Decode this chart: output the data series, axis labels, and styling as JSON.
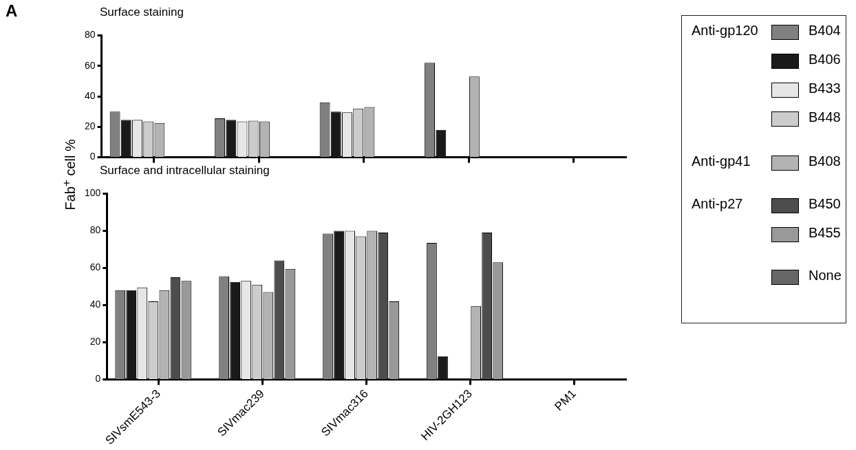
{
  "chart_data": [
    {
      "type": "bar",
      "title": "Surface staining",
      "ylabel": "Fab$^{+}$ cell %",
      "annotations": [
        "A",
        "Anti-gp120",
        "Anti-gp41",
        "Anti-p27"
      ],
      "categories": [
        null,
        null,
        null,
        null,
        null
      ],
      "series": [
        {
          "name": "B404",
          "color": "#808080",
          "values": [
            30,
            25.5,
            36,
            62,
            null
          ]
        },
        {
          "name": "B406",
          "color": "#1a1a1a",
          "values": [
            24.5,
            24.5,
            30,
            18,
            null
          ]
        },
        {
          "name": "B433",
          "color": "#e6e6e6",
          "values": [
            24.5,
            23.5,
            29.5,
            null,
            null
          ]
        },
        {
          "name": "B448",
          "color": "#cccccc",
          "values": [
            23.5,
            24,
            32,
            null,
            null
          ]
        },
        {
          "name": "B408",
          "color": "#b3b3b3",
          "values": [
            22.5,
            23.5,
            33,
            53,
            null
          ]
        },
        {
          "name": "B450",
          "color": "#4d4d4d",
          "values": [
            null,
            null,
            null,
            null,
            null
          ]
        },
        {
          "name": "B455",
          "color": "#999999",
          "values": [
            null,
            null,
            null,
            null,
            null
          ]
        },
        {
          "name": "None",
          "color": "#666666",
          "values": [
            null,
            null,
            null,
            null,
            null
          ]
        }
      ],
      "ylim": [
        0,
        80
      ],
      "yticks": [
        0,
        20,
        40,
        60,
        80
      ],
      "grid": false,
      "tick_labels": "y",
      "legend": "right"
    },
    {
      "type": "bar",
      "title": "Surface and intracellular staining",
      "categories": [
        "SIVsmE543-3",
        "SIVmac239",
        "SIVmac316",
        "HIV-2GH123",
        "PM1"
      ],
      "series": [
        {
          "color": "#808080",
          "values": [
            48,
            55.5,
            78.5,
            73.5,
            0
          ]
        },
        {
          "color": "#1a1a1a",
          "values": [
            48,
            52.5,
            80,
            12.5,
            0
          ]
        },
        {
          "color": "#e6e6e6",
          "values": [
            49.5,
            53,
            80,
            0,
            0
          ]
        },
        {
          "color": "#cccccc",
          "values": [
            42,
            51,
            77,
            0,
            0
          ]
        },
        {
          "color": "#b3b3b3",
          "values": [
            48,
            47,
            80,
            39.5,
            0
          ]
        },
        {
          "color": "#4d4d4d",
          "values": [
            55,
            64,
            79,
            79,
            0
          ]
        },
        {
          "color": "#999999",
          "values": [
            53,
            59.5,
            42,
            63,
            0
          ]
        },
        {
          "color": "#666666",
          "values": [
            0,
            0,
            0,
            0,
            0
          ]
        }
      ],
      "ylim": [
        0,
        100
      ],
      "yticks": [
        0,
        20,
        40,
        60,
        80,
        100
      ],
      "grid": false
    }
  ]
}
